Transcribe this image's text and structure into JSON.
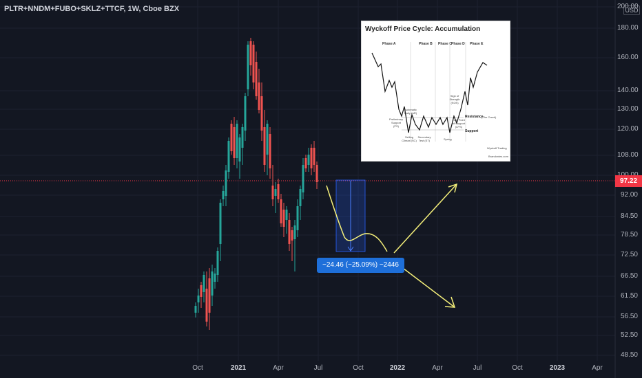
{
  "symbol": "PLTR+NNDM+FUBO+SKLZ+TTCF, 1W, Cboe BZX",
  "currency": "USD",
  "last_price": "97.22",
  "price_axis": [
    "200.00",
    "180.00",
    "160.00",
    "140.00",
    "130.00",
    "120.00",
    "108.00",
    "100.00",
    "92.00",
    "84.50",
    "78.50",
    "72.50",
    "66.50",
    "61.50",
    "56.50",
    "52.50",
    "48.50"
  ],
  "time_axis": [
    {
      "label": "Oct",
      "bold": false
    },
    {
      "label": "2021",
      "bold": true
    },
    {
      "label": "Apr",
      "bold": false
    },
    {
      "label": "Jul",
      "bold": false
    },
    {
      "label": "Oct",
      "bold": false
    },
    {
      "label": "2022",
      "bold": true
    },
    {
      "label": "Apr",
      "bold": false
    },
    {
      "label": "Jul",
      "bold": false
    },
    {
      "label": "Oct",
      "bold": false
    },
    {
      "label": "2023",
      "bold": true
    },
    {
      "label": "Apr",
      "bold": false
    }
  ],
  "measure_label": "−24.46 (−25.09%) −2446",
  "colors": {
    "up": "#26a69a",
    "down": "#ef5350",
    "background": "#131722",
    "price_tag": "#f23645",
    "annotation": "#f5f07a",
    "measure": "#2962ff"
  },
  "inset": {
    "title": "Wyckoff Price Cycle: Accumulation",
    "phases": [
      "Phase A",
      "Phase B",
      "Phase C",
      "Phase D",
      "Phase E"
    ],
    "resistance": "Resistance",
    "creek": "(The Creek)",
    "support": "Support",
    "events": {
      "ps": "Preliminary Support (PS)",
      "ar": "Automatic Rally (AR)",
      "sc": "Selling Climax (SC)",
      "st": "Secondary Test (ST)",
      "spring": "Spring",
      "sos": "Sign of Strength (SOS)",
      "lps": "Last Point of Support (LPS)"
    },
    "brand": "Wyckoff Trading",
    "site": "Brandonies.com"
  }
}
